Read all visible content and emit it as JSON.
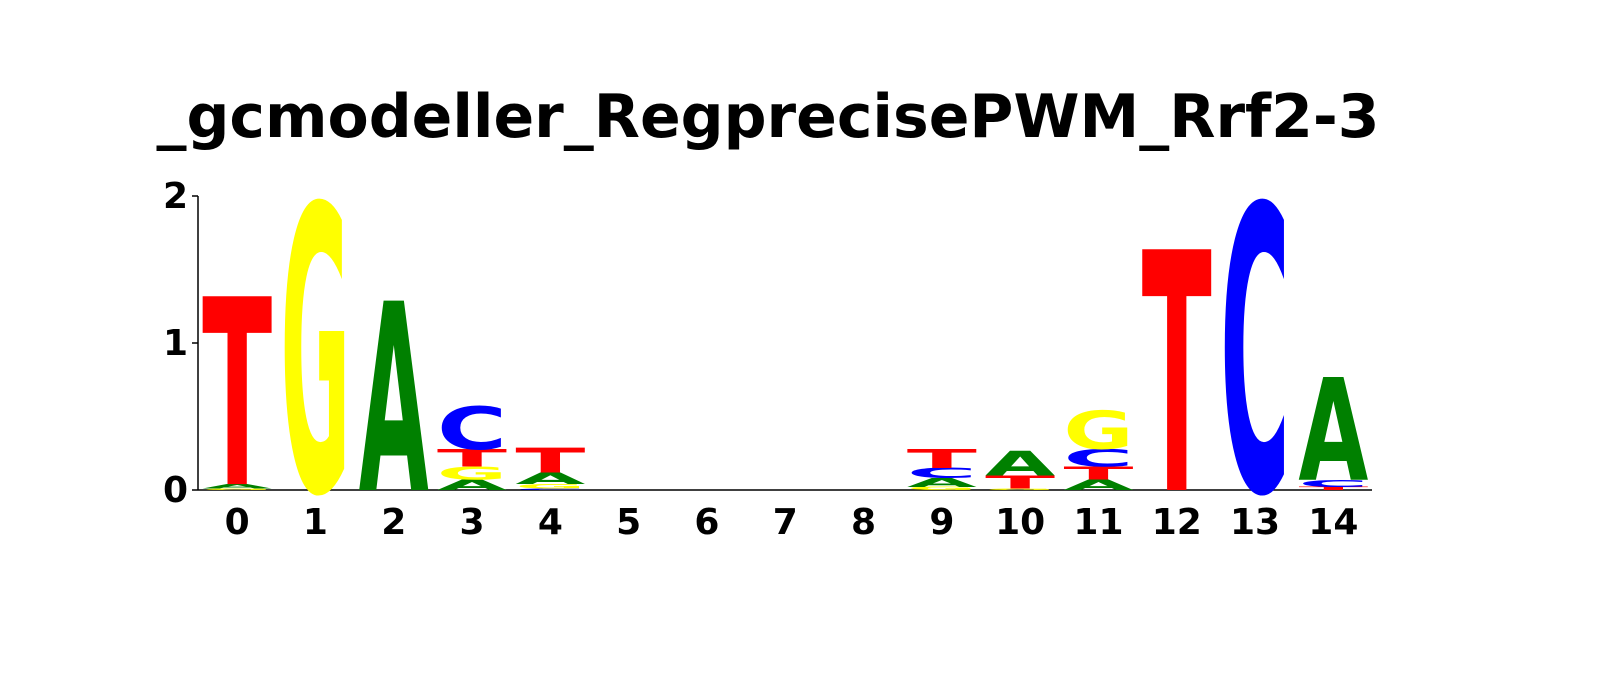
{
  "chart_data": {
    "type": "sequence_logo",
    "title": "_gcmodeller_RegprecisePWM_Rrf2-3",
    "xlabel": "",
    "ylabel": "",
    "ylim": [
      0,
      2
    ],
    "y_ticks": [
      "0",
      "1",
      "2"
    ],
    "x_ticks": [
      "0",
      "1",
      "2",
      "3",
      "4",
      "5",
      "6",
      "7",
      "8",
      "9",
      "10",
      "11",
      "12",
      "13",
      "14"
    ],
    "colors": {
      "A": "#008000",
      "C": "#0000ff",
      "G": "#ffff00",
      "T": "#ff0000"
    },
    "positions": [
      {
        "pos": "0",
        "stack": [
          {
            "letter": "G",
            "height": 0.01
          },
          {
            "letter": "A",
            "height": 0.03
          },
          {
            "letter": "T",
            "height": 1.28
          }
        ]
      },
      {
        "pos": "1",
        "stack": [
          {
            "letter": "G",
            "height": 1.95
          }
        ]
      },
      {
        "pos": "2",
        "stack": [
          {
            "letter": "A",
            "height": 1.29
          }
        ]
      },
      {
        "pos": "3",
        "stack": [
          {
            "letter": "A",
            "height": 0.07
          },
          {
            "letter": "G",
            "height": 0.09
          },
          {
            "letter": "T",
            "height": 0.12
          },
          {
            "letter": "C",
            "height": 0.29
          }
        ]
      },
      {
        "pos": "4",
        "stack": [
          {
            "letter": "C",
            "height": 0.01
          },
          {
            "letter": "G",
            "height": 0.03
          },
          {
            "letter": "A",
            "height": 0.08
          },
          {
            "letter": "T",
            "height": 0.17
          }
        ]
      },
      {
        "pos": "5",
        "stack": []
      },
      {
        "pos": "6",
        "stack": []
      },
      {
        "pos": "7",
        "stack": []
      },
      {
        "pos": "8",
        "stack": []
      },
      {
        "pos": "9",
        "stack": [
          {
            "letter": "G",
            "height": 0.02
          },
          {
            "letter": "A",
            "height": 0.06
          },
          {
            "letter": "C",
            "height": 0.07
          },
          {
            "letter": "T",
            "height": 0.13
          }
        ]
      },
      {
        "pos": "10",
        "stack": [
          {
            "letter": "G",
            "height": 0.01
          },
          {
            "letter": "T",
            "height": 0.09
          },
          {
            "letter": "A",
            "height": 0.17
          }
        ]
      },
      {
        "pos": "11",
        "stack": [
          {
            "letter": "A",
            "height": 0.07
          },
          {
            "letter": "T",
            "height": 0.09
          },
          {
            "letter": "C",
            "height": 0.12
          },
          {
            "letter": "G",
            "height": 0.26
          }
        ]
      },
      {
        "pos": "12",
        "stack": [
          {
            "letter": "T",
            "height": 1.64
          }
        ]
      },
      {
        "pos": "13",
        "stack": [
          {
            "letter": "C",
            "height": 1.95
          }
        ]
      },
      {
        "pos": "14",
        "stack": [
          {
            "letter": "T",
            "height": 0.02
          },
          {
            "letter": "C",
            "height": 0.05
          },
          {
            "letter": "A",
            "height": 0.7
          }
        ]
      }
    ]
  }
}
